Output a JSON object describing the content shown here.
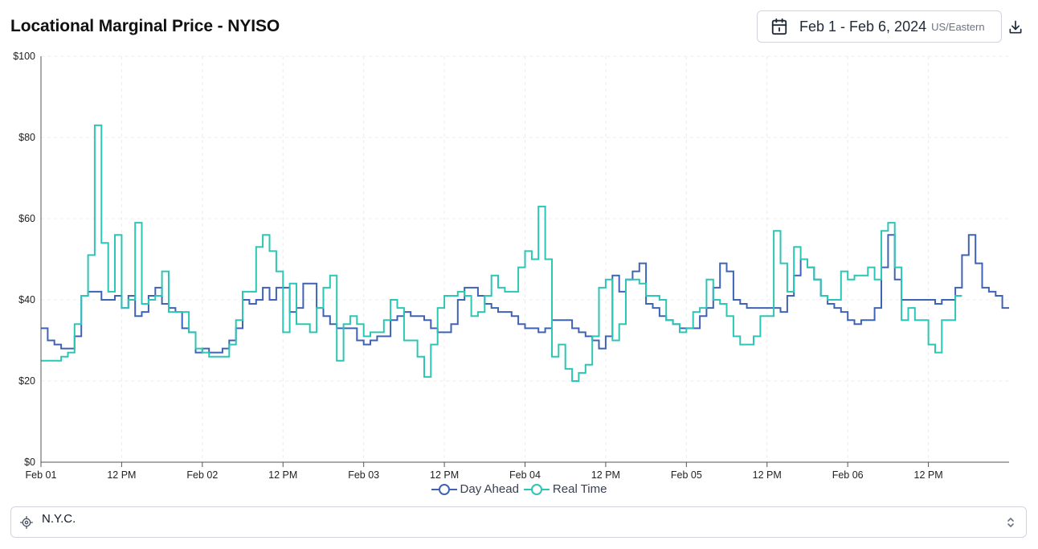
{
  "header": {
    "title": "Locational Marginal Price - NYISO",
    "date_range": "Feb 1 - Feb 6, 2024",
    "timezone": "US/Eastern"
  },
  "zone_select": {
    "value": "N.Y.C."
  },
  "colors": {
    "day_ahead": "#3f63b4",
    "real_time": "#2cc6b4",
    "grid": "#ececec",
    "axis": "#555555"
  },
  "icons": {
    "date": "calendar-icon",
    "download": "download-icon",
    "location": "crosshair-icon",
    "select": "chevron-up-down-icon"
  },
  "chart_data": {
    "type": "line",
    "step": true,
    "title": "Locational Marginal Price - NYISO",
    "xlabel": "",
    "ylabel": "",
    "x_unit": "hours since Feb 01 00:00 US/Eastern",
    "xlim": [
      0,
      144
    ],
    "ylim": [
      0,
      100
    ],
    "y_ticks": [
      0,
      20,
      40,
      60,
      80,
      100
    ],
    "y_tick_labels": [
      "$0",
      "$20",
      "$40",
      "$60",
      "$80",
      "$100"
    ],
    "x_ticks": [
      0,
      12,
      24,
      36,
      48,
      60,
      72,
      84,
      96,
      108,
      120,
      132
    ],
    "x_tick_labels": [
      "Feb 01",
      "12 PM",
      "Feb 02",
      "12 PM",
      "Feb 03",
      "12 PM",
      "Feb 04",
      "12 PM",
      "Feb 05",
      "12 PM",
      "Feb 06",
      "12 PM"
    ],
    "grid": true,
    "legend": "bottom",
    "series": [
      {
        "name": "Day Ahead",
        "values": [
          33,
          30,
          29,
          28,
          28,
          31,
          41,
          42,
          42,
          40,
          40,
          41,
          38,
          41,
          36,
          37,
          41,
          43,
          39,
          38,
          37,
          33,
          32,
          27,
          28,
          27,
          27,
          28,
          30,
          33,
          40,
          39,
          40,
          43,
          40,
          43,
          43,
          37,
          38,
          44,
          44,
          38,
          36,
          34,
          33,
          33,
          33,
          30,
          29,
          30,
          31,
          31,
          35,
          36,
          37,
          36,
          36,
          35,
          33,
          32,
          32,
          34,
          40,
          43,
          43,
          41,
          39,
          38,
          37,
          37,
          36,
          34,
          33,
          33,
          32,
          33,
          35,
          35,
          35,
          33,
          32,
          31,
          30,
          28,
          31,
          46,
          42,
          45,
          47,
          49,
          39,
          38,
          36,
          35,
          34,
          33,
          33,
          33,
          36,
          38,
          43,
          49,
          47,
          40,
          39,
          38,
          38,
          38,
          38,
          38,
          37,
          41,
          46,
          50,
          48,
          45,
          41,
          39,
          38,
          37,
          35,
          34,
          35,
          35,
          38,
          48,
          56,
          45,
          40,
          40,
          40,
          40,
          40,
          39,
          40,
          40,
          43,
          51,
          56,
          49,
          43,
          42,
          41,
          38
        ],
        "color": "#3f63b4"
      },
      {
        "name": "Real Time",
        "values": [
          25,
          25,
          25,
          26,
          27,
          34,
          41,
          51,
          83,
          54,
          42,
          56,
          38,
          40,
          59,
          39,
          40,
          41,
          47,
          37,
          37,
          37,
          32,
          28,
          27,
          26,
          26,
          26,
          29,
          35,
          42,
          42,
          53,
          56,
          52,
          47,
          32,
          44,
          34,
          34,
          32,
          38,
          43,
          46,
          25,
          34,
          36,
          34,
          31,
          32,
          32,
          35,
          40,
          38,
          30,
          30,
          26,
          21,
          29,
          38,
          41,
          41,
          42,
          41,
          36,
          37,
          41,
          46,
          43,
          42,
          42,
          48,
          52,
          50,
          63,
          50,
          26,
          29,
          23,
          20,
          22,
          24,
          31,
          43,
          45,
          30,
          34,
          45,
          45,
          44,
          41,
          41,
          40,
          35,
          34,
          32,
          33,
          37,
          38,
          45,
          40,
          39,
          36,
          31,
          29,
          29,
          31,
          36,
          36,
          57,
          49,
          42,
          53,
          50,
          48,
          45,
          41,
          40,
          40,
          47,
          45,
          46,
          46,
          48,
          45,
          57,
          59,
          48,
          35,
          38,
          35,
          35,
          29,
          27,
          35,
          35,
          41
        ],
        "color": "#2cc6b4"
      }
    ]
  }
}
